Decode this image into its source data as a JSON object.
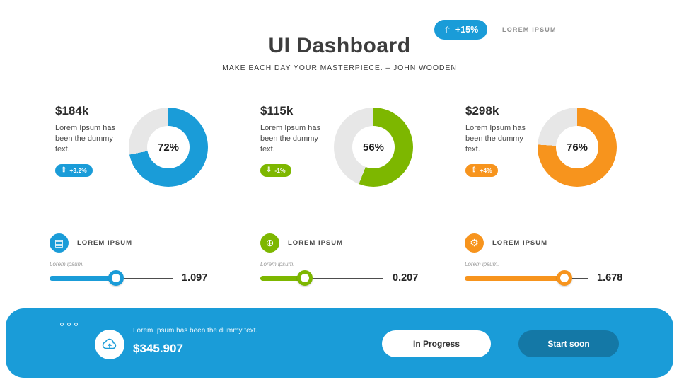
{
  "colors": {
    "blue": "#1A9CD8",
    "green": "#7DB700",
    "orange": "#F7941D",
    "track": "#E7E7E7",
    "footer_bg": "#1A9CD8",
    "button_dark": "#1478A6"
  },
  "header": {
    "title": "UI Dashboard",
    "subtitle": "MAKE EACH DAY YOUR MASTERPIECE. – JOHN WOODEN",
    "badge_icon": "⇧",
    "badge_value": "+15%",
    "badge_label": "LOREM IPSUM"
  },
  "stats": [
    {
      "amount": "$184k",
      "desc": "Lorem Ipsum has been the dummy text.",
      "badge_icon": "⇧",
      "badge": "+3.2%",
      "percent": 72,
      "percent_label": "72%",
      "color": "#1A9CD8"
    },
    {
      "amount": "$115k",
      "desc": "Lorem Ipsum has been the dummy text.",
      "badge_icon": "⇩",
      "badge": "-1%",
      "percent": 56,
      "percent_label": "56%",
      "color": "#7DB700"
    },
    {
      "amount": "$298k",
      "desc": "Lorem Ipsum has been the dummy text.",
      "badge_icon": "⇧",
      "badge": "+4%",
      "percent": 76,
      "percent_label": "76%",
      "color": "#F7941D"
    }
  ],
  "sliders": [
    {
      "label": "LOREM IPSUM",
      "sublabel": "Lorem ipsum.",
      "value": "1.097",
      "fill_percent": 54,
      "color": "#1A9CD8",
      "icon": "▤"
    },
    {
      "label": "LOREM IPSUM",
      "sublabel": "Lorem ipsum.",
      "value": "0.207",
      "fill_percent": 36,
      "color": "#7DB700",
      "icon": "⊕"
    },
    {
      "label": "LOREM IPSUM",
      "sublabel": "Lorem ipsum.",
      "value": "1.678",
      "fill_percent": 81,
      "color": "#F7941D",
      "icon": "⚙"
    }
  ],
  "footer": {
    "desc": "Lorem Ipsum has been the dummy text.",
    "amount": "$345.907",
    "button_primary": "In Progress",
    "button_secondary": "Start soon"
  },
  "chart_data": [
    {
      "type": "pie",
      "title": "$184k",
      "labels": [
        "value",
        "remainder"
      ],
      "values": [
        72,
        28
      ],
      "center_label": "72%",
      "color": "#1A9CD8",
      "change": "+3.2%"
    },
    {
      "type": "pie",
      "title": "$115k",
      "labels": [
        "value",
        "remainder"
      ],
      "values": [
        56,
        44
      ],
      "center_label": "56%",
      "color": "#7DB700",
      "change": "-1%"
    },
    {
      "type": "pie",
      "title": "$298k",
      "labels": [
        "value",
        "remainder"
      ],
      "values": [
        76,
        24
      ],
      "center_label": "76%",
      "color": "#F7941D",
      "change": "+4%"
    }
  ]
}
